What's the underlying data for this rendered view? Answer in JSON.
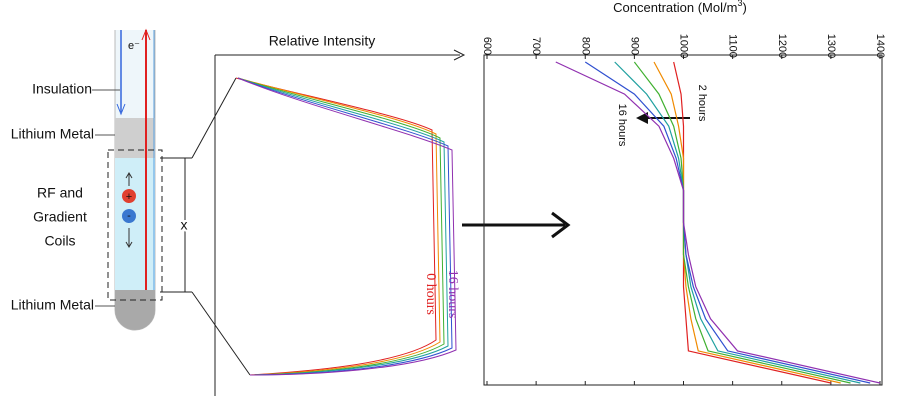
{
  "labels": {
    "insulation": "Insulation",
    "lithium_top": "Lithium Metal",
    "coils_1": "RF and",
    "coils_2": "Gradient",
    "coils_3": "Coils",
    "lithium_bottom": "Lithium Metal",
    "electron": "e⁻",
    "plus": "+",
    "minus": "-",
    "gap": "x",
    "profile_title": "Relative Intensity",
    "profile_start": "0 hours",
    "profile_end": "16 hours"
  },
  "chart_data": {
    "type": "line",
    "title": "Concentration (Mol/m",
    "title_superscript": "3",
    "title_end": ")",
    "annotations": [
      "2 hours",
      "16 hours"
    ],
    "categories": [
      null,
      null,
      null,
      null,
      null,
      null,
      null,
      null,
      null,
      null,
      null
    ],
    "series": [
      {
        "color": "#e02020",
        "values": [
          980,
          995,
          1000,
          1000,
          1000,
          1000,
          1000,
          1000,
          1005,
          1010,
          1300
        ]
      },
      {
        "color": "#f08a00",
        "values": [
          940,
          975,
          990,
          1000,
          1000,
          1000,
          1000,
          1005,
          1015,
          1030,
          1320
        ]
      },
      {
        "color": "#40b030",
        "values": [
          900,
          950,
          980,
          995,
          1000,
          1000,
          1000,
          1010,
          1025,
          1050,
          1340
        ]
      },
      {
        "color": "#20a0a0",
        "values": [
          860,
          925,
          970,
          990,
          1000,
          1000,
          1005,
          1015,
          1035,
          1070,
          1360
        ]
      },
      {
        "color": "#3050d0",
        "values": [
          800,
          900,
          960,
          985,
          1000,
          1000,
          1005,
          1020,
          1045,
          1090,
          1380
        ]
      },
      {
        "color": "#9030b0",
        "values": [
          740,
          880,
          950,
          980,
          1000,
          1000,
          1010,
          1025,
          1055,
          1110,
          1400
        ]
      }
    ],
    "xlim": [
      600,
      1400
    ],
    "xticks": [
      600,
      700,
      800,
      900,
      1000,
      1100,
      1200,
      1300,
      1400
    ]
  }
}
